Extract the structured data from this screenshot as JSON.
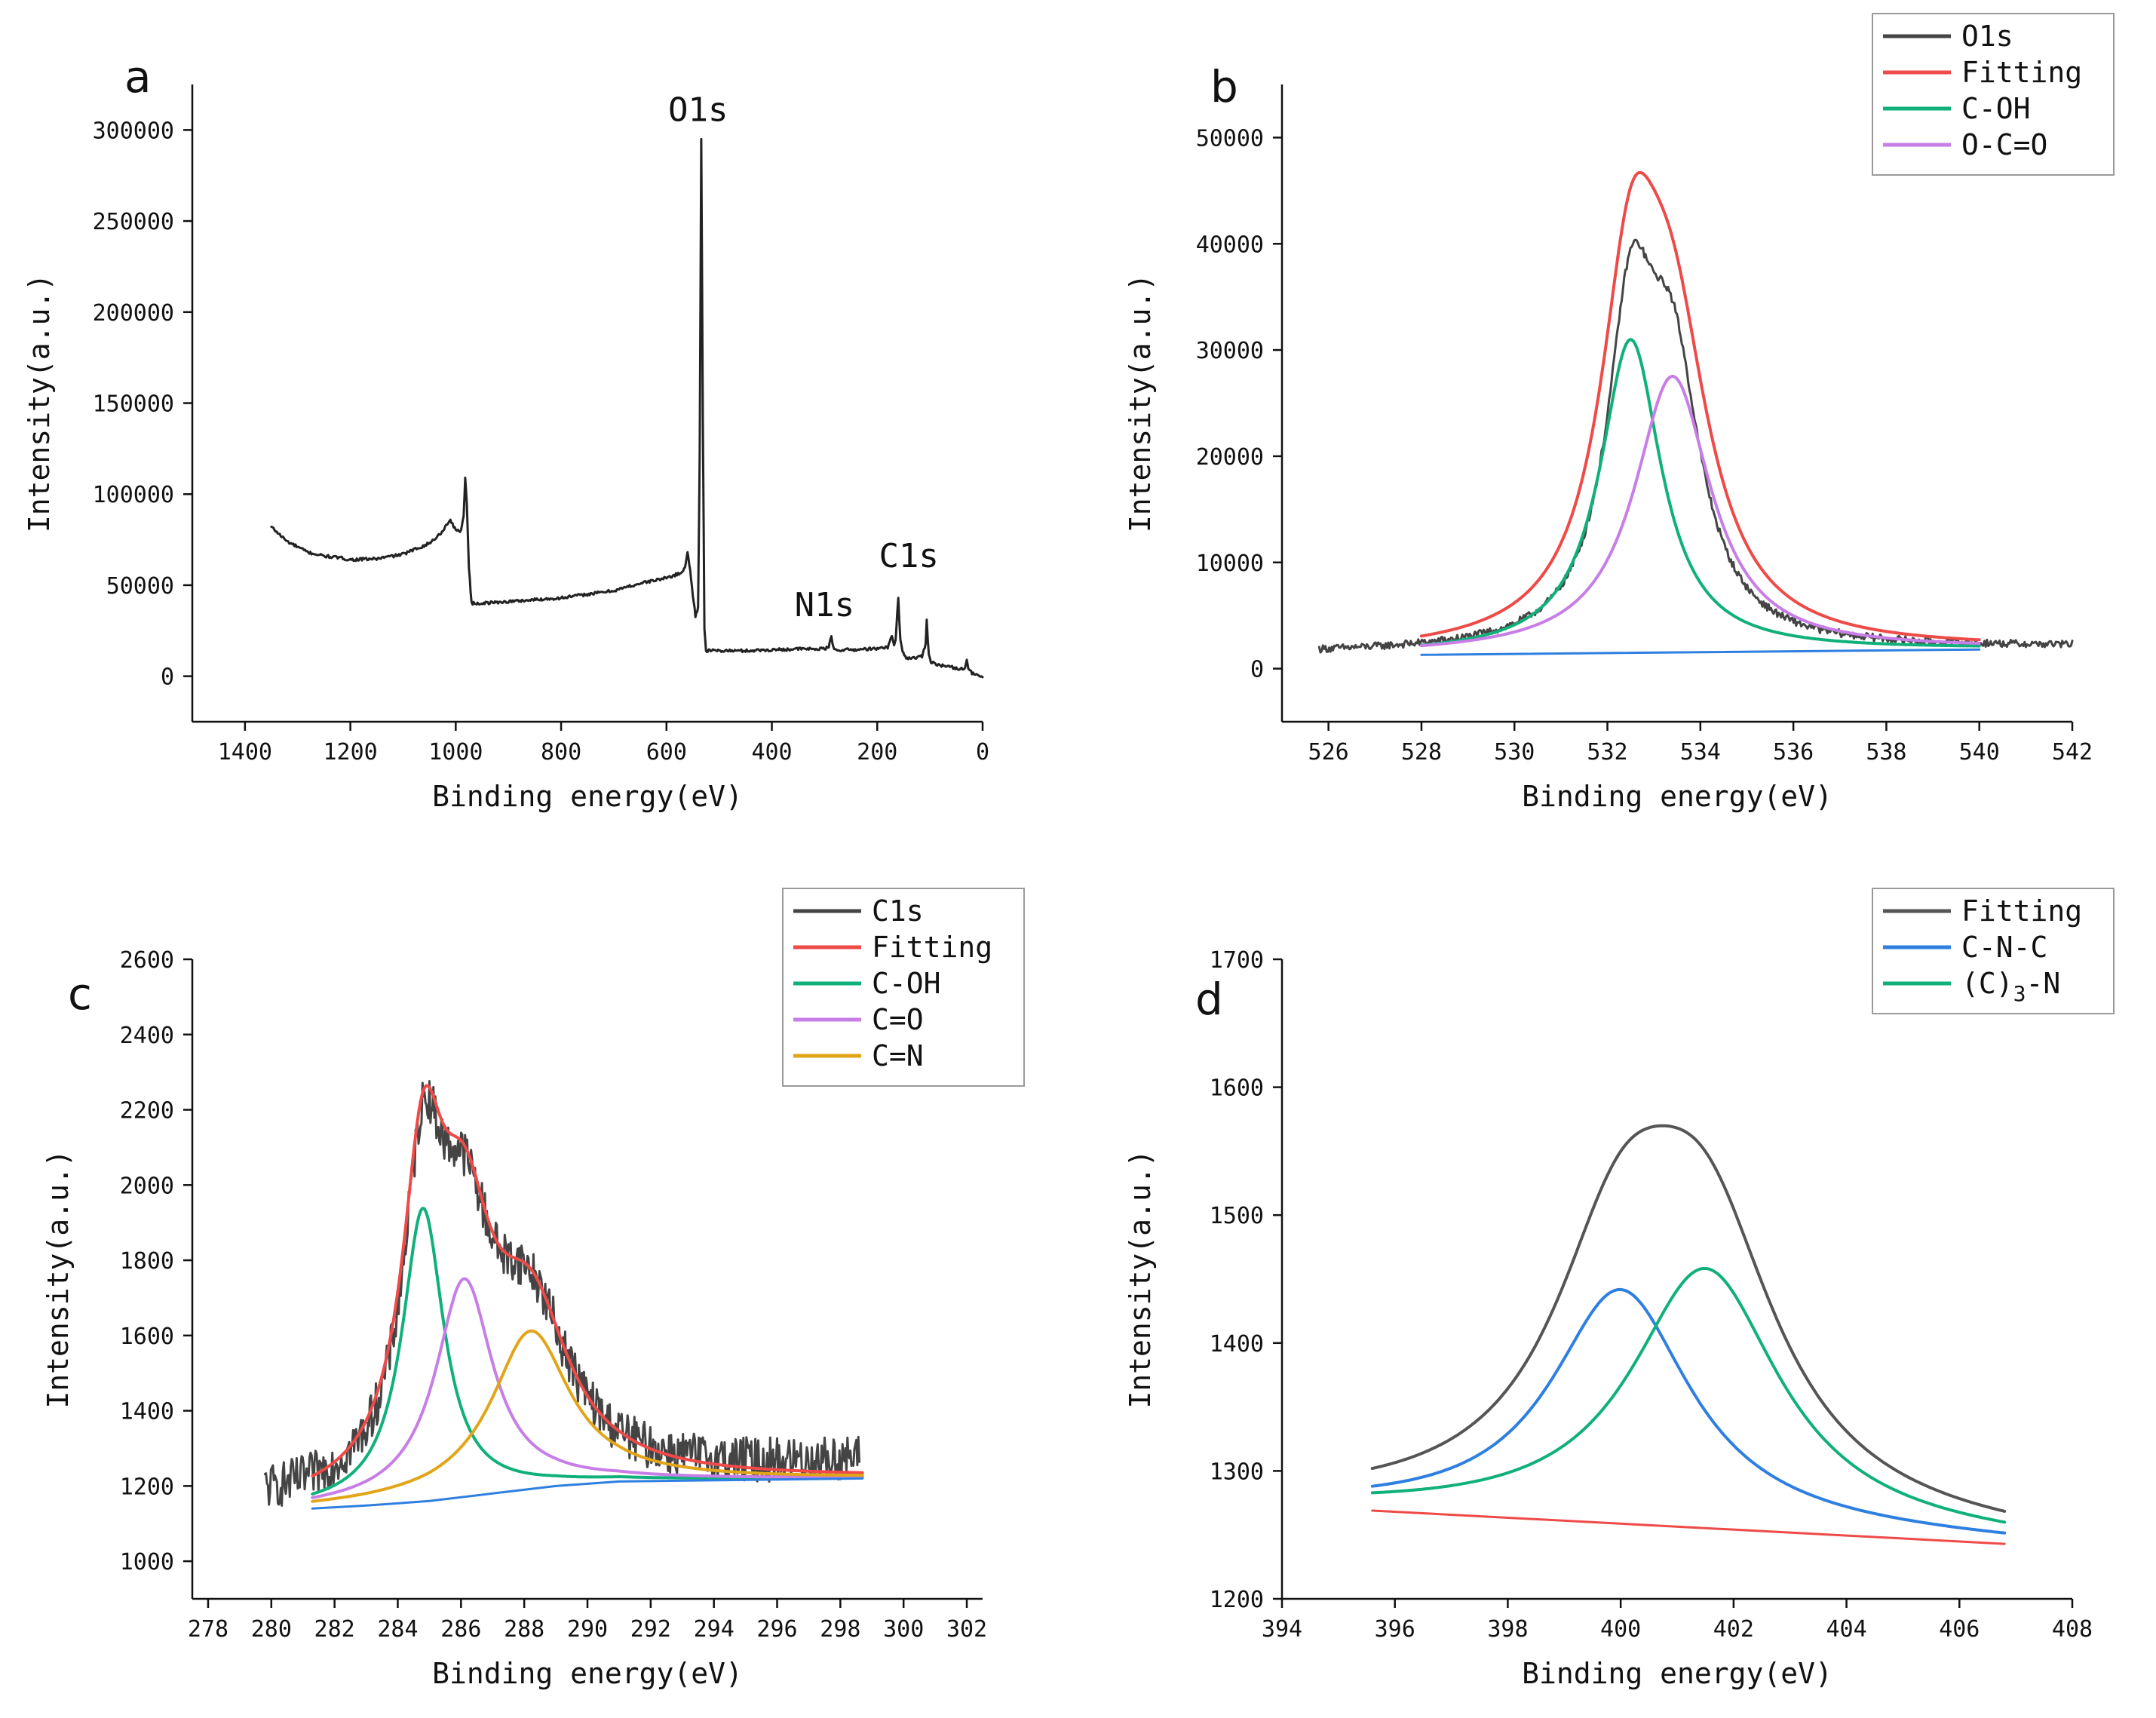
{
  "chart_data": [
    {
      "id": "a",
      "type": "line",
      "panel_label": "a",
      "xlabel": "Binding energy(eV)",
      "ylabel": "Intensity(a.u.)",
      "xlim": [
        1500,
        0
      ],
      "ylim": [
        -25000,
        325000
      ],
      "xticks": [
        1400,
        1200,
        1000,
        800,
        600,
        400,
        200,
        0
      ],
      "yticks": [
        0,
        50000,
        100000,
        150000,
        200000,
        250000,
        300000
      ],
      "annotations": [
        {
          "text": "O1s",
          "x": 540,
          "y": 305000
        },
        {
          "text": "N1s",
          "x": 300,
          "y": 33000
        },
        {
          "text": "C1s",
          "x": 140,
          "y": 60000
        }
      ],
      "series": [
        {
          "name": "Survey",
          "color": "#222222",
          "noise": 800,
          "x": [
            1350,
            1320,
            1300,
            1280,
            1250,
            1220,
            1200,
            1150,
            1100,
            1050,
            1030,
            1010,
            1000,
            990,
            985,
            982,
            979,
            975,
            970,
            962,
            955,
            900,
            850,
            800,
            750,
            700,
            650,
            600,
            580,
            570,
            565,
            560,
            555,
            550,
            545,
            540,
            537,
            534,
            531,
            528,
            525,
            520,
            500,
            450,
            400,
            350,
            300,
            292,
            287,
            285,
            282,
            278,
            260,
            240,
            220,
            200,
            180,
            172,
            168,
            165,
            162,
            160,
            158,
            156,
            152,
            145,
            130,
            115,
            108,
            106,
            104,
            102,
            98,
            90,
            80,
            60,
            40,
            33,
            30,
            27,
            20,
            10,
            0
          ],
          "y": [
            82000,
            74000,
            71000,
            68000,
            66000,
            65000,
            64000,
            64500,
            67000,
            73000,
            78000,
            86000,
            80000,
            80000,
            88000,
            109000,
            95000,
            60000,
            40000,
            40000,
            40000,
            41000,
            42000,
            43000,
            45000,
            47000,
            51000,
            54000,
            56000,
            57000,
            60000,
            68000,
            58000,
            45000,
            33000,
            38000,
            120000,
            295000,
            140000,
            26000,
            14000,
            14000,
            14000,
            14000,
            14500,
            15000,
            15000,
            16000,
            22000,
            18000,
            15000,
            14500,
            14500,
            14500,
            15000,
            15000,
            16000,
            22000,
            17000,
            20000,
            35000,
            43000,
            30000,
            20000,
            14000,
            10000,
            10000,
            11000,
            18000,
            31000,
            20000,
            12000,
            8000,
            7000,
            6000,
            5000,
            4000,
            5000,
            9000,
            4000,
            1500,
            500,
            -500
          ]
        }
      ]
    },
    {
      "id": "b",
      "type": "line",
      "panel_label": "b",
      "xlabel": "Binding energy(eV)",
      "ylabel": "Intensity(a.u.)",
      "xlim": [
        525,
        542
      ],
      "ylim": [
        -5000,
        55000
      ],
      "xticks": [
        526,
        528,
        530,
        532,
        534,
        536,
        538,
        540,
        542
      ],
      "yticks": [
        0,
        10000,
        20000,
        30000,
        40000,
        50000
      ],
      "legend": {
        "position": "top-right",
        "entries": [
          "O1s",
          "Fitting",
          "C-OH",
          "O-C=O"
        ]
      },
      "series": [
        {
          "name": "O1s",
          "color": "#444444",
          "kind": "sum",
          "components": [
            {
              "amp": 28000,
              "center": 532.5,
              "width": 0.62
            },
            {
              "amp": 24000,
              "center": 533.4,
              "width": 0.75
            }
          ],
          "baseline": {
            "x": [
              525.8,
              542
            ],
            "y": [
              1400,
              2000
            ]
          },
          "range": [
            525.8,
            542
          ],
          "noise": 350
        },
        {
          "name": "Fitting",
          "color": "#ee4a48",
          "kind": "sum",
          "components": [
            {
              "amp": 29500,
              "center": 532.5,
              "width": 0.8
            },
            {
              "amp": 26000,
              "center": 533.4,
              "width": 1.0
            }
          ],
          "baseline": {
            "x": [
              528,
              540
            ],
            "y": [
              1300,
              1800
            ]
          },
          "range": [
            528,
            540
          ]
        },
        {
          "name": "C-OH",
          "color": "#10b07a",
          "kind": "sum",
          "components": [
            {
              "amp": 29500,
              "center": 532.5,
              "width": 0.8
            }
          ],
          "baseline": {
            "x": [
              528,
              540
            ],
            "y": [
              1300,
              1800
            ]
          },
          "range": [
            528,
            540
          ]
        },
        {
          "name": "O-C=O",
          "color": "#c77ee6",
          "kind": "sum",
          "components": [
            {
              "amp": 26000,
              "center": 533.4,
              "width": 1.0
            }
          ],
          "baseline": {
            "x": [
              528,
              540
            ],
            "y": [
              1300,
              1800
            ]
          },
          "range": [
            528,
            540
          ]
        },
        {
          "name": "Background",
          "color": "#2e7fe0",
          "kind": "line",
          "x": [
            528,
            540
          ],
          "y": [
            1300,
            1800
          ]
        }
      ]
    },
    {
      "id": "c",
      "type": "line",
      "panel_label": "c",
      "xlabel": "Binding energy(eV)",
      "ylabel": "Intensity(a.u.)",
      "xlim": [
        277.5,
        302.5
      ],
      "ylim": [
        900,
        2600
      ],
      "xticks": [
        278,
        280,
        282,
        284,
        286,
        288,
        290,
        292,
        294,
        296,
        298,
        300,
        302
      ],
      "yticks": [
        1000,
        1200,
        1400,
        1600,
        1800,
        2000,
        2200,
        2400,
        2600
      ],
      "legend": {
        "position": "top-right",
        "entries": [
          "C1s",
          "Fitting",
          "C-OH",
          "C=O",
          "C=N"
        ]
      },
      "series": [
        {
          "name": "C1s",
          "color": "#444444",
          "kind": "sum",
          "components": [
            {
              "amp": 750,
              "center": 284.8,
              "width": 0.75
            },
            {
              "amp": 580,
              "center": 286.1,
              "width": 1.1
            },
            {
              "amp": 420,
              "center": 288.2,
              "width": 1.5
            }
          ],
          "baseline": {
            "x": [
              279.8,
              283.5,
              286.5,
              290,
              298.6
            ],
            "y": [
              1150,
              1150,
              1180,
              1210,
              1260
            ]
          },
          "range": [
            279.8,
            298.6
          ],
          "noise": 60
        },
        {
          "name": "Fitting",
          "color": "#ee4a48",
          "kind": "sum",
          "components": [
            {
              "amp": 780,
              "center": 284.8,
              "width": 0.8
            },
            {
              "amp": 580,
              "center": 286.1,
              "width": 1.1
            },
            {
              "amp": 420,
              "center": 288.2,
              "width": 1.5
            }
          ],
          "baseline": {
            "x": [
              281.3,
              283,
              285,
              287,
              289,
              291,
              298.7
            ],
            "y": [
              1140,
              1148,
              1160,
              1180,
              1200,
              1212,
              1220
            ]
          },
          "range": [
            281.3,
            298.7
          ]
        },
        {
          "name": "C-OH",
          "color": "#10b07a",
          "kind": "sum",
          "components": [
            {
              "amp": 780,
              "center": 284.8,
              "width": 0.8
            }
          ],
          "baseline": {
            "x": [
              281.3,
              283,
              285,
              287,
              289,
              291,
              298.7
            ],
            "y": [
              1140,
              1148,
              1160,
              1180,
              1200,
              1212,
              1220
            ]
          },
          "range": [
            281.3,
            298.7
          ]
        },
        {
          "name": "C=O",
          "color": "#c77ee6",
          "kind": "sum",
          "components": [
            {
              "amp": 580,
              "center": 286.1,
              "width": 1.1
            }
          ],
          "baseline": {
            "x": [
              281.3,
              283,
              285,
              287,
              289,
              291,
              298.7
            ],
            "y": [
              1140,
              1148,
              1160,
              1180,
              1200,
              1212,
              1220
            ]
          },
          "range": [
            281.3,
            298.7
          ]
        },
        {
          "name": "C=N",
          "color": "#e2a519",
          "kind": "sum",
          "components": [
            {
              "amp": 420,
              "center": 288.2,
              "width": 1.5
            }
          ],
          "baseline": {
            "x": [
              281.3,
              283,
              285,
              287,
              289,
              291,
              298.7
            ],
            "y": [
              1140,
              1148,
              1160,
              1180,
              1200,
              1212,
              1220
            ]
          },
          "range": [
            281.3,
            298.7
          ]
        },
        {
          "name": "Background",
          "color": "#2e7fe0",
          "kind": "line",
          "x": [
            281.3,
            283,
            285,
            287,
            289,
            291,
            298.7
          ],
          "y": [
            1140,
            1148,
            1160,
            1180,
            1200,
            1212,
            1220
          ]
        }
      ]
    },
    {
      "id": "d",
      "type": "line",
      "panel_label": "d",
      "xlabel": "Binding energy(eV)",
      "ylabel": "Intensity(a.u.)",
      "xlim": [
        394,
        408
      ],
      "ylim": [
        1200,
        1700
      ],
      "xticks": [
        394,
        396,
        398,
        400,
        402,
        404,
        406,
        408
      ],
      "yticks": [
        1200,
        1300,
        1400,
        1500,
        1600,
        1700
      ],
      "legend": {
        "position": "top-right",
        "entries": [
          "Fitting",
          "C-N-C",
          "(C)3-N"
        ],
        "subscript_in_entry_3": "3"
      },
      "series": [
        {
          "name": "Fitting",
          "color": "#555555",
          "kind": "sum",
          "components": [
            {
              "amp": 183,
              "center": 400.0,
              "width": 1.5
            },
            {
              "amp": 203,
              "center": 401.5,
              "width": 1.6
            }
          ],
          "baseline": {
            "x": [
              395.6,
              406.8
            ],
            "y": [
              1269,
              1243
            ]
          },
          "range": [
            395.6,
            406.8
          ]
        },
        {
          "name": "C-N-C",
          "color": "#2e7fe0",
          "kind": "sum",
          "components": [
            {
              "amp": 183,
              "center": 400.0,
              "width": 1.5
            }
          ],
          "baseline": {
            "x": [
              395.6,
              406.8
            ],
            "y": [
              1269,
              1243
            ]
          },
          "range": [
            395.6,
            406.8
          ]
        },
        {
          "name": "(C)3-N",
          "color": "#10b07a",
          "kind": "sum",
          "components": [
            {
              "amp": 203,
              "center": 401.5,
              "width": 1.6
            }
          ],
          "baseline": {
            "x": [
              395.6,
              406.8
            ],
            "y": [
              1269,
              1243
            ]
          },
          "range": [
            395.6,
            406.8
          ]
        },
        {
          "name": "Background",
          "color": "#ee4a48",
          "kind": "line",
          "x": [
            395.6,
            406.8
          ],
          "y": [
            1269,
            1243
          ]
        }
      ]
    }
  ]
}
